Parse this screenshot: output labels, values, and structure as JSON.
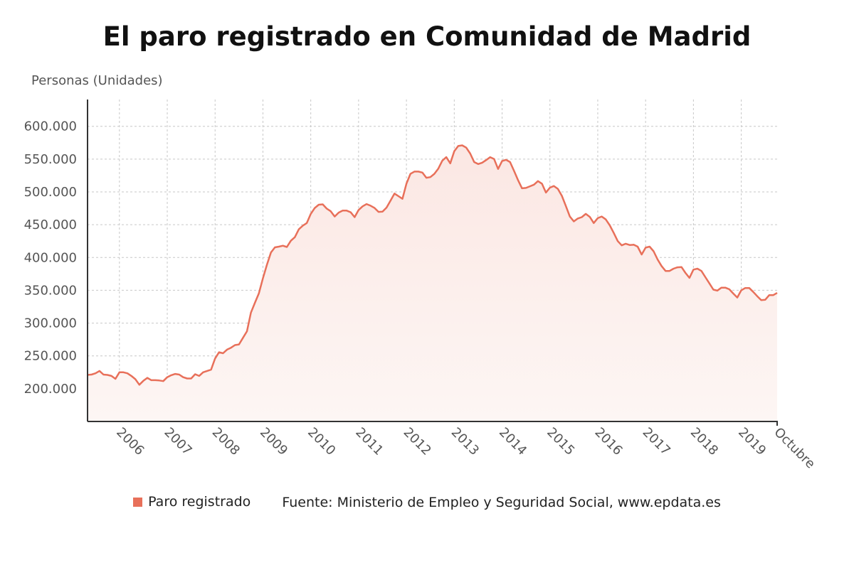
{
  "chart_data": {
    "type": "area",
    "title": "El paro registrado en Comunidad de Madrid",
    "ylabel": "Personas (Unidades)",
    "xlabel": "",
    "ylim": [
      150000,
      630000
    ],
    "y_ticks": [
      200000,
      250000,
      300000,
      350000,
      400000,
      450000,
      500000,
      550000,
      600000
    ],
    "y_tick_labels": [
      "200.000",
      "250.000",
      "300.000",
      "350.000",
      "400.000",
      "450.000",
      "500.000",
      "550.000",
      "600.000"
    ],
    "x_tick_labels": [
      "2006",
      "2007",
      "2008",
      "2009",
      "2010",
      "2011",
      "2012",
      "2013",
      "2014",
      "2015",
      "2016",
      "2017",
      "2018",
      "2019",
      "Octubre"
    ],
    "grid": true,
    "legend_position": "bottom",
    "series": [
      {
        "name": "Paro registrado",
        "color": "#e8705a",
        "x": [
          "2005-05",
          "2005-06",
          "2005-07",
          "2005-08",
          "2005-09",
          "2005-10",
          "2005-11",
          "2005-12",
          "2006-01",
          "2006-02",
          "2006-03",
          "2006-04",
          "2006-05",
          "2006-06",
          "2006-07",
          "2006-08",
          "2006-09",
          "2006-10",
          "2006-11",
          "2006-12",
          "2007-01",
          "2007-02",
          "2007-03",
          "2007-04",
          "2007-05",
          "2007-06",
          "2007-07",
          "2007-08",
          "2007-09",
          "2007-10",
          "2007-11",
          "2007-12",
          "2008-01",
          "2008-02",
          "2008-03",
          "2008-04",
          "2008-05",
          "2008-06",
          "2008-07",
          "2008-08",
          "2008-09",
          "2008-10",
          "2008-11",
          "2008-12",
          "2009-01",
          "2009-02",
          "2009-03",
          "2009-04",
          "2009-05",
          "2009-06",
          "2009-07",
          "2009-08",
          "2009-09",
          "2009-10",
          "2009-11",
          "2009-12",
          "2010-01",
          "2010-02",
          "2010-03",
          "2010-04",
          "2010-05",
          "2010-06",
          "2010-07",
          "2010-08",
          "2010-09",
          "2010-10",
          "2010-11",
          "2010-12",
          "2011-01",
          "2011-02",
          "2011-03",
          "2011-04",
          "2011-05",
          "2011-06",
          "2011-07",
          "2011-08",
          "2011-09",
          "2011-10",
          "2011-11",
          "2011-12",
          "2012-01",
          "2012-02",
          "2012-03",
          "2012-04",
          "2012-05",
          "2012-06",
          "2012-07",
          "2012-08",
          "2012-09",
          "2012-10",
          "2012-11",
          "2012-12",
          "2013-01",
          "2013-02",
          "2013-03",
          "2013-04",
          "2013-05",
          "2013-06",
          "2013-07",
          "2013-08",
          "2013-09",
          "2013-10",
          "2013-11",
          "2013-12",
          "2014-01",
          "2014-02",
          "2014-03",
          "2014-04",
          "2014-05",
          "2014-06",
          "2014-07",
          "2014-08",
          "2014-09",
          "2014-10",
          "2014-11",
          "2014-12",
          "2015-01",
          "2015-02",
          "2015-03",
          "2015-04",
          "2015-05",
          "2015-06",
          "2015-07",
          "2015-08",
          "2015-09",
          "2015-10",
          "2015-11",
          "2015-12",
          "2016-01",
          "2016-02",
          "2016-03",
          "2016-04",
          "2016-05",
          "2016-06",
          "2016-07",
          "2016-08",
          "2016-09",
          "2016-10",
          "2016-11",
          "2016-12",
          "2017-01",
          "2017-02",
          "2017-03",
          "2017-04",
          "2017-05",
          "2017-06",
          "2017-07",
          "2017-08",
          "2017-09",
          "2017-10",
          "2017-11",
          "2017-12",
          "2018-01",
          "2018-02",
          "2018-03",
          "2018-04",
          "2018-05",
          "2018-06",
          "2018-07",
          "2018-08",
          "2018-09",
          "2018-10",
          "2018-11",
          "2018-12",
          "2019-01",
          "2019-02",
          "2019-03",
          "2019-04",
          "2019-05",
          "2019-06",
          "2019-07",
          "2019-08",
          "2019-09",
          "2019-10"
        ],
        "values": [
          221000,
          221500,
          223500,
          227000,
          221500,
          221000,
          219500,
          215000,
          225000,
          225000,
          223500,
          219500,
          214500,
          206000,
          212000,
          216500,
          213000,
          213000,
          212500,
          211500,
          217500,
          220500,
          222500,
          221500,
          217500,
          215500,
          215500,
          222000,
          219500,
          225000,
          227000,
          229000,
          246000,
          255500,
          254000,
          259500,
          262500,
          266500,
          267500,
          277500,
          287500,
          316000,
          331000,
          345500,
          368500,
          389000,
          407500,
          415500,
          416500,
          418000,
          416000,
          425500,
          431000,
          443000,
          448500,
          452500,
          466500,
          475500,
          480500,
          481000,
          474500,
          470500,
          462500,
          468500,
          471500,
          471500,
          469000,
          461500,
          472500,
          478000,
          481500,
          479000,
          475500,
          469500,
          470000,
          476000,
          486500,
          497500,
          493500,
          489500,
          512500,
          527500,
          531000,
          531000,
          529500,
          521500,
          522500,
          527500,
          535500,
          547500,
          553000,
          543500,
          562000,
          570000,
          571000,
          567500,
          558500,
          545500,
          542500,
          544500,
          548500,
          553000,
          550000,
          535000,
          547000,
          549000,
          545500,
          532000,
          518000,
          505500,
          506000,
          508500,
          511000,
          516500,
          512500,
          499000,
          506500,
          509000,
          504500,
          494000,
          478500,
          462500,
          455000,
          459500,
          461500,
          466500,
          462000,
          452500,
          460000,
          462500,
          458000,
          449000,
          437500,
          425000,
          418500,
          421000,
          419000,
          419500,
          416500,
          404500,
          415000,
          416500,
          409500,
          397000,
          387000,
          379500,
          379500,
          383000,
          385000,
          385500,
          376500,
          369000,
          381500,
          383000,
          379500,
          370000,
          360500,
          351000,
          349500,
          354000,
          354000,
          351500,
          345000,
          339000,
          350000,
          353500,
          353500,
          347500,
          341000,
          335000,
          335500,
          342500,
          342500,
          346000
        ]
      }
    ]
  },
  "legend": {
    "series_label": "Paro registrado",
    "source": "Fuente: Ministerio de Empleo y Seguridad Social, www.epdata.es"
  },
  "colors": {
    "line": "#e8705a",
    "fill_top": "#fbe7e3",
    "fill_bottom": "#fdf6f4",
    "grid": "#c7c7c7",
    "axis": "#333333"
  }
}
